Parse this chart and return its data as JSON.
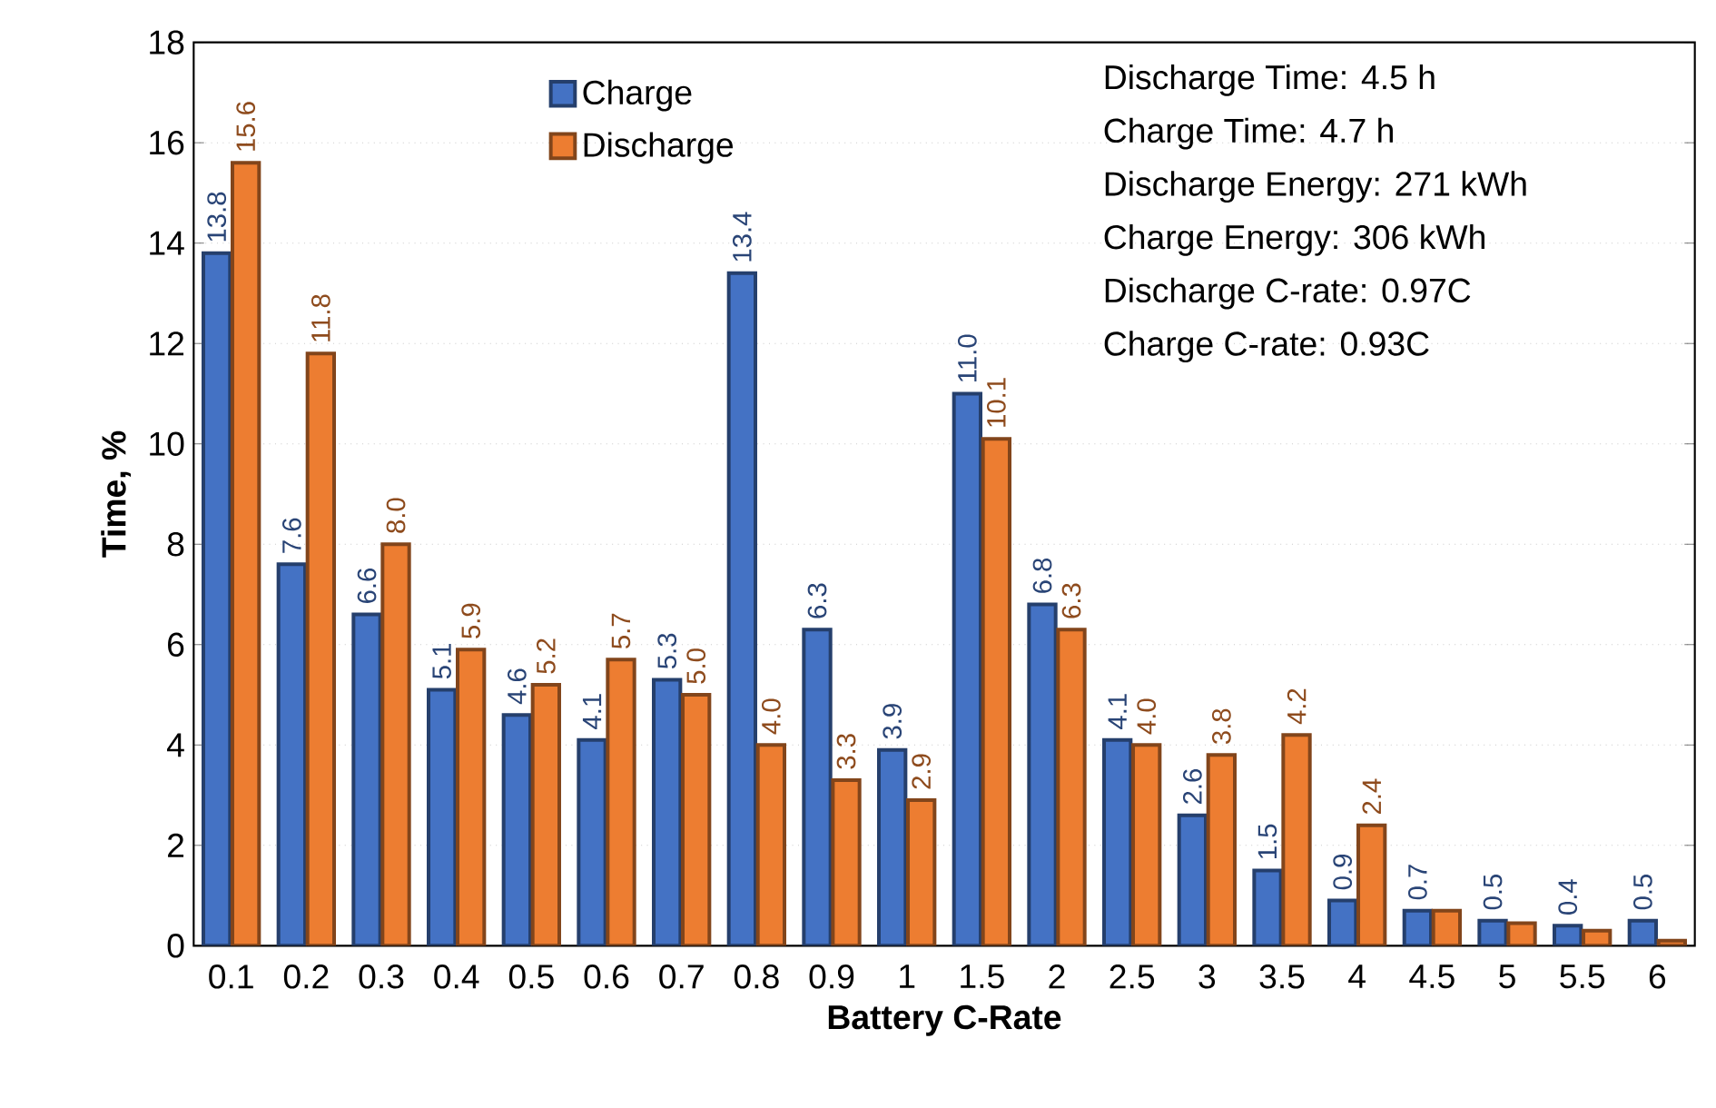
{
  "chart_data": {
    "type": "bar",
    "xlabel": "Battery C-Rate",
    "ylabel": "Time, %",
    "categories": [
      "0.1",
      "0.2",
      "0.3",
      "0.4",
      "0.5",
      "0.6",
      "0.7",
      "0.8",
      "0.9",
      "1",
      "1.5",
      "2",
      "2.5",
      "3",
      "3.5",
      "4",
      "4.5",
      "5",
      "5.5",
      "6"
    ],
    "series": [
      {
        "name": "Charge",
        "color": "#4472c4",
        "values": [
          13.8,
          7.6,
          6.6,
          5.1,
          4.6,
          4.1,
          5.3,
          13.4,
          6.3,
          3.9,
          11.0,
          6.8,
          4.1,
          2.6,
          1.5,
          0.9,
          0.7,
          0.5,
          0.4,
          0.5
        ],
        "value_labels": [
          "13.8",
          "7.6",
          "6.6",
          "5.1",
          "4.6",
          "4.1",
          "5.3",
          "13.4",
          "6.3",
          "3.9",
          "11.0",
          "6.8",
          "4.1",
          "2.6",
          "1.5",
          "0.9",
          "0.7",
          "0.5",
          "0.4",
          "0.5"
        ]
      },
      {
        "name": "Discharge",
        "color": "#ed7d31",
        "values": [
          15.6,
          11.8,
          8.0,
          5.9,
          5.2,
          5.7,
          5.0,
          4.0,
          3.3,
          2.9,
          10.1,
          6.3,
          4.0,
          3.8,
          4.2,
          2.4,
          0.7,
          0.45,
          0.3,
          0.1
        ],
        "value_labels": [
          "15.6",
          "11.8",
          "8.0",
          "5.9",
          "5.2",
          "5.7",
          "5.0",
          "4.0",
          "3.3",
          "2.9",
          "10.1",
          "6.3",
          "4.0",
          "3.8",
          "4.2",
          "2.4",
          null,
          null,
          null,
          null
        ]
      }
    ],
    "ylim": [
      0,
      18
    ],
    "yticks": [
      0,
      2,
      4,
      6,
      8,
      10,
      12,
      14,
      16,
      18
    ],
    "grid": "y",
    "legend": "top",
    "annotations": [
      "Discharge Time: 4.5 h",
      "Charge Time: 4.7 h",
      "Discharge Energy: 271 kWh",
      "Charge Energy: 306 kWh",
      "Discharge C-rate: 0.97C",
      "Charge C-rate: 0.93C"
    ]
  }
}
